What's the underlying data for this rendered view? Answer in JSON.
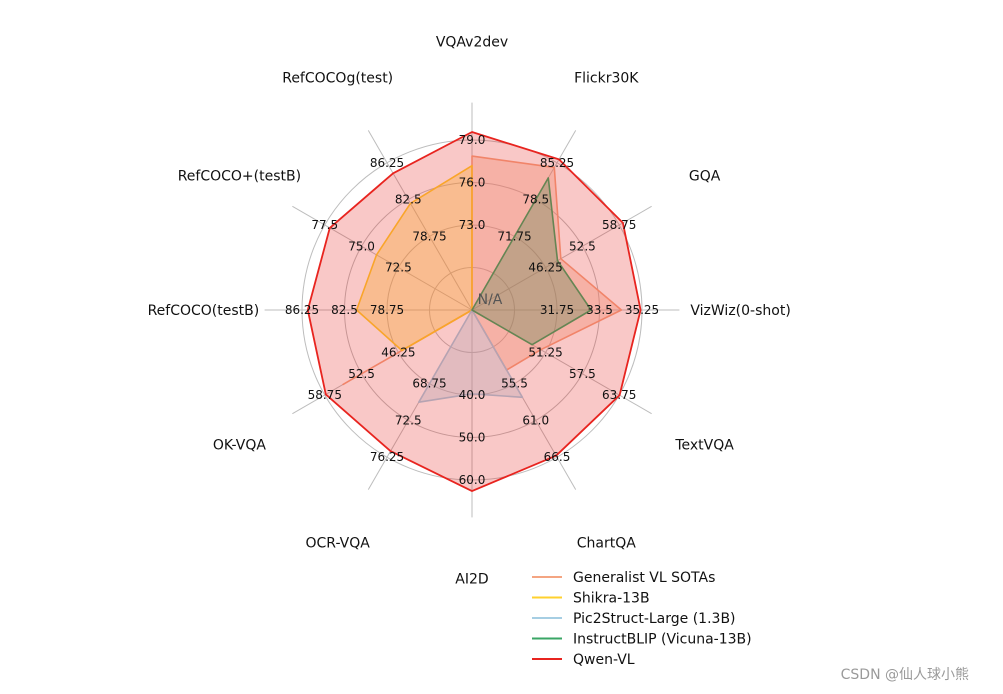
{
  "chart_data": {
    "type": "radar",
    "axes": [
      {
        "name": "VQAv2dev",
        "ticks": [
          "73.0",
          "76.0",
          "79.0"
        ]
      },
      {
        "name": "Flickr30K",
        "ticks": [
          "71.75",
          "78.5",
          "85.25"
        ]
      },
      {
        "name": "GQA",
        "ticks": [
          "46.25",
          "52.5",
          "58.75"
        ]
      },
      {
        "name": "VizWiz(0-shot)",
        "ticks": [
          "31.75",
          "33.5",
          "35.25"
        ]
      },
      {
        "name": "TextVQA",
        "ticks": [
          "51.25",
          "57.5",
          "63.75"
        ]
      },
      {
        "name": "ChartQA",
        "ticks": [
          "55.5",
          "61.0",
          "66.5"
        ]
      },
      {
        "name": "AI2D",
        "ticks": [
          "40.0",
          "50.0",
          "60.0"
        ]
      },
      {
        "name": "OCR-VQA",
        "ticks": [
          "68.75",
          "72.5",
          "76.25"
        ]
      },
      {
        "name": "OK-VQA",
        "ticks": [
          "46.25",
          "52.5",
          "58.75"
        ]
      },
      {
        "name": "RefCOCO(testB)",
        "ticks": [
          "78.75",
          "82.5",
          "86.25"
        ]
      },
      {
        "name": "RefCOCO+(testB)",
        "ticks": [
          "72.5",
          "75.0",
          "77.5"
        ]
      },
      {
        "name": "RefCOCOg(test)",
        "ticks": [
          "78.75",
          "82.5",
          "86.25"
        ]
      }
    ],
    "ring_levels": [
      0.25,
      0.5,
      0.75,
      1.0
    ],
    "center_label": "N/A",
    "series": [
      {
        "name": "Generalist VL SOTAs",
        "color": "#f4a582",
        "fill": true,
        "values": [
          78.0,
          84.5,
          50.0,
          34.5,
          52.0,
          55.0,
          null,
          null,
          56.0,
          null,
          null,
          null
        ]
      },
      {
        "name": "Shikra-13B",
        "color": "#ffd12e",
        "fill": true,
        "values": [
          77.4,
          null,
          null,
          null,
          null,
          null,
          null,
          null,
          47.2,
          82.0,
          74.4,
          82.6
        ]
      },
      {
        "name": "Pic2Struct-Large (1.3B)",
        "color": "#a6cee3",
        "fill": true,
        "values": [
          null,
          null,
          null,
          null,
          null,
          58.6,
          42.1,
          71.3,
          null,
          null,
          null,
          null
        ]
      },
      {
        "name": "InstructBLIP (Vicuna-13B)",
        "color": "#3aa665",
        "fill": true,
        "values": [
          null,
          82.8,
          49.5,
          33.4,
          50.7,
          null,
          null,
          null,
          null,
          null,
          null,
          null
        ]
      },
      {
        "name": "Qwen-VL",
        "color": "#e8241f",
        "fill": true,
        "values": [
          79.5,
          85.8,
          59.3,
          35.2,
          63.8,
          66.3,
          62.3,
          75.7,
          58.6,
          85.8,
          77.2,
          85.3
        ]
      }
    ],
    "legend_position": "lower-right"
  },
  "watermark": "CSDN @仙人球小熊"
}
